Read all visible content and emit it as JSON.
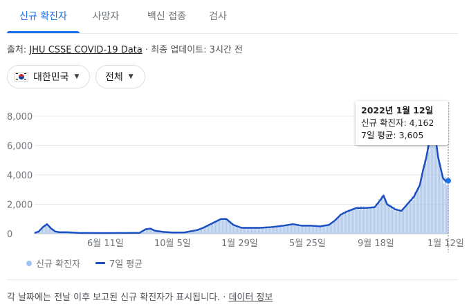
{
  "tabs": [
    {
      "label": "신규 확진자"
    },
    {
      "label": "사망자"
    },
    {
      "label": "백신 접종"
    },
    {
      "label": "검사"
    }
  ],
  "source": {
    "prefix": "출처: ",
    "link": "JHU CSSE COVID-19 Data",
    "separator": " · ",
    "update": "최종 업데이트: 3시간 전"
  },
  "filters": {
    "country": "대한민국",
    "scope": "전체"
  },
  "tooltip": {
    "date": "2022년 1월 12일",
    "cases_label": "신규 확진자: 4,162",
    "avg_label": "7일 평균: 3,605"
  },
  "legend": {
    "daily": "신규 확진자",
    "average": "7일 평균"
  },
  "footer": {
    "note": "각 날짜에는 전날 이후 보고된 신규 확진자가 표시됩니다.",
    "separator": " · ",
    "link": "데이터 정보"
  },
  "colors": {
    "accent": "#1a73e8",
    "bars": "#a1c2f7",
    "line": "#1a4fc4"
  },
  "chart_data": {
    "type": "bar",
    "title": "",
    "xlabel": "",
    "ylabel": "",
    "ylim": [
      0,
      8000
    ],
    "yticks": [
      "8,000",
      "6,000",
      "4,000",
      "2,000",
      "0"
    ],
    "xticks": [
      "6월 11일",
      "10월 5일",
      "1월 29일",
      "5월 25일",
      "9월 18일",
      "1월 12일"
    ],
    "x_range": [
      "2020-02-15",
      "2022-01-12"
    ],
    "series": [
      {
        "name": "7일 평균",
        "type": "line",
        "x": [
          "2020-02-15",
          "2020-02-22",
          "2020-02-29",
          "2020-03-07",
          "2020-03-14",
          "2020-03-21",
          "2020-03-28",
          "2020-04-11",
          "2020-05-01",
          "2020-06-11",
          "2020-07-15",
          "2020-08-10",
          "2020-08-20",
          "2020-08-28",
          "2020-09-05",
          "2020-09-20",
          "2020-10-05",
          "2020-10-25",
          "2020-11-15",
          "2020-11-25",
          "2020-12-05",
          "2020-12-15",
          "2020-12-25",
          "2021-01-03",
          "2021-01-15",
          "2021-01-29",
          "2021-02-15",
          "2021-03-01",
          "2021-03-20",
          "2021-04-10",
          "2021-04-25",
          "2021-05-10",
          "2021-05-25",
          "2021-06-10",
          "2021-06-25",
          "2021-07-05",
          "2021-07-15",
          "2021-07-25",
          "2021-08-10",
          "2021-08-25",
          "2021-09-10",
          "2021-09-18",
          "2021-09-25",
          "2021-10-01",
          "2021-10-15",
          "2021-10-25",
          "2021-11-05",
          "2021-11-15",
          "2021-11-25",
          "2021-12-01",
          "2021-12-05",
          "2021-12-10",
          "2021-12-15",
          "2021-12-18",
          "2021-12-22",
          "2021-12-26",
          "2021-12-30",
          "2022-01-03",
          "2022-01-08",
          "2022-01-12"
        ],
        "values": [
          50,
          150,
          450,
          650,
          350,
          150,
          100,
          100,
          50,
          40,
          50,
          60,
          300,
          350,
          200,
          120,
          80,
          90,
          250,
          400,
          600,
          800,
          1000,
          1000,
          600,
          400,
          400,
          400,
          450,
          550,
          650,
          550,
          550,
          500,
          600,
          900,
          1300,
          1500,
          1750,
          1750,
          1800,
          2200,
          2600,
          2000,
          1650,
          1550,
          2050,
          2500,
          3300,
          4400,
          5000,
          6000,
          6900,
          6800,
          6400,
          5200,
          4500,
          3800,
          3550,
          3605
        ]
      }
    ],
    "highlight": {
      "date": "2022-01-12",
      "daily": 4162,
      "average": 3605
    }
  }
}
